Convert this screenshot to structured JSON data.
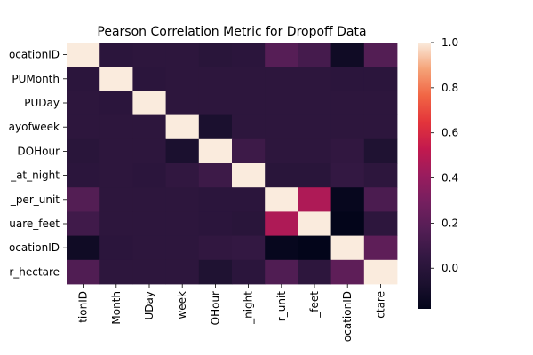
{
  "chart_data": {
    "type": "heatmap",
    "title": "Pearson Correlation Metric for Dropoff Data",
    "row_labels": [
      "ocationID",
      "PUMonth",
      "PUDay",
      "ayofweek",
      "DOHour",
      "_at_night",
      "_per_unit",
      "uare_feet",
      "ocationID",
      "r_hectare"
    ],
    "col_labels": [
      "tionID",
      "Month",
      "UDay",
      "week",
      "OHour",
      "_night",
      "r_unit",
      "_feet",
      "ocationID",
      "ctare"
    ],
    "values": [
      [
        1.0,
        0.01,
        0.02,
        0.02,
        0.0,
        0.01,
        0.18,
        0.12,
        -0.12,
        0.17
      ],
      [
        0.01,
        1.0,
        0.01,
        0.02,
        0.02,
        0.02,
        0.02,
        0.02,
        0.01,
        0.01
      ],
      [
        0.02,
        0.01,
        1.0,
        0.02,
        0.02,
        0.02,
        0.02,
        0.02,
        0.02,
        0.02
      ],
      [
        0.02,
        0.02,
        0.02,
        1.0,
        -0.07,
        0.02,
        0.02,
        0.02,
        0.02,
        0.02
      ],
      [
        0.0,
        0.02,
        0.02,
        -0.07,
        1.0,
        0.09,
        0.02,
        0.02,
        0.04,
        -0.05
      ],
      [
        0.01,
        0.02,
        0.01,
        0.04,
        0.09,
        1.0,
        0.0,
        0.0,
        0.05,
        0.02
      ],
      [
        0.17,
        0.02,
        0.02,
        0.02,
        0.01,
        0.01,
        1.0,
        0.47,
        -0.16,
        0.14
      ],
      [
        0.1,
        0.02,
        0.02,
        0.02,
        0.01,
        0.0,
        0.47,
        1.0,
        -0.18,
        0.02
      ],
      [
        -0.12,
        0.01,
        0.02,
        0.02,
        0.04,
        0.05,
        -0.16,
        -0.18,
        1.0,
        0.21
      ],
      [
        0.16,
        0.02,
        0.02,
        0.02,
        -0.05,
        0.01,
        0.16,
        0.02,
        0.21,
        1.0
      ]
    ],
    "colorbar": {
      "min": -0.18,
      "max": 1.0,
      "ticks": [
        "1.0",
        "0.8",
        "0.6",
        "0.4",
        "0.2",
        "0.0"
      ]
    },
    "colormap": "rocket"
  }
}
